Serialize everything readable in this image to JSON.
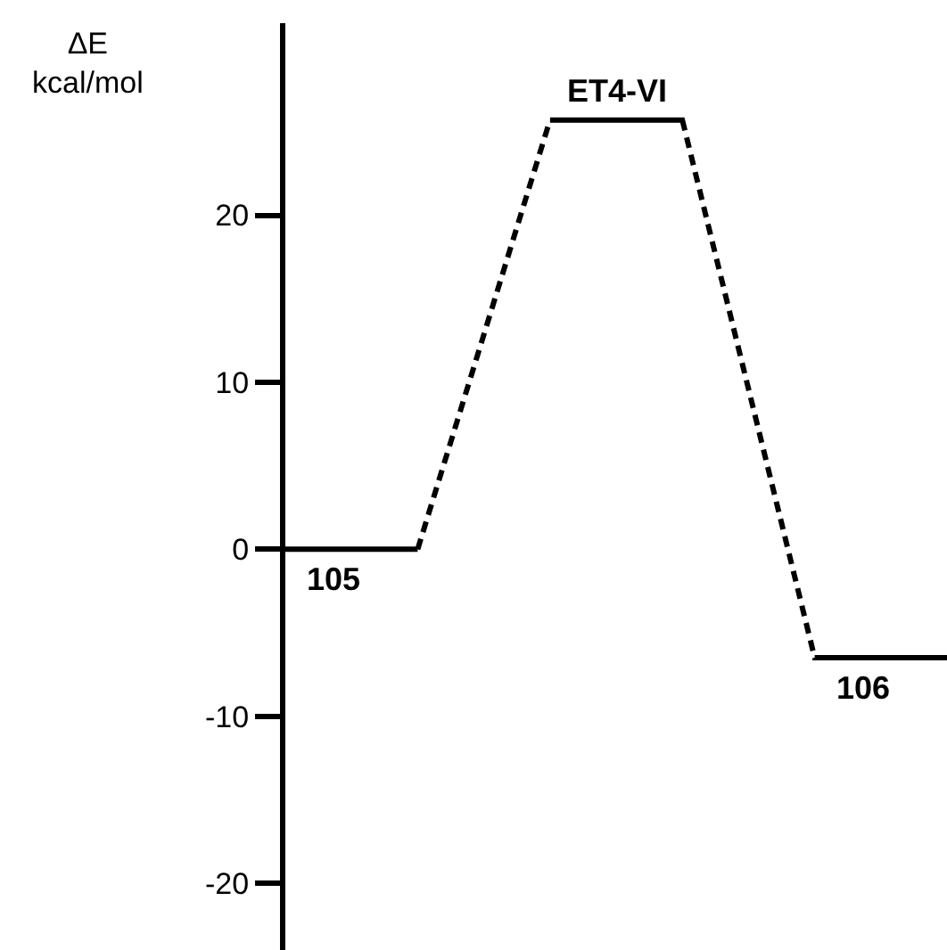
{
  "chart_data": {
    "type": "line",
    "ylabel": "ΔE\nkcal/mol",
    "categories": [
      null,
      null,
      null,
      null,
      null,
      null
    ],
    "series": [
      {
        "color": "#000000",
        "line_style": "dashed",
        "values": [
          0,
          0,
          25.7,
          25.7,
          -6.5,
          -6.5
        ]
      }
    ],
    "annotations": [
      {
        "text": "105",
        "y": 0
      },
      {
        "text": "ET4-VI",
        "y": 25.7
      },
      {
        "text": "106",
        "y": -6.5
      }
    ],
    "ylim": [
      -24,
      31.5
    ],
    "yticks": [
      -20,
      -10,
      0,
      10,
      20
    ],
    "tick_labels": "y",
    "grid": false,
    "marker": "none"
  }
}
